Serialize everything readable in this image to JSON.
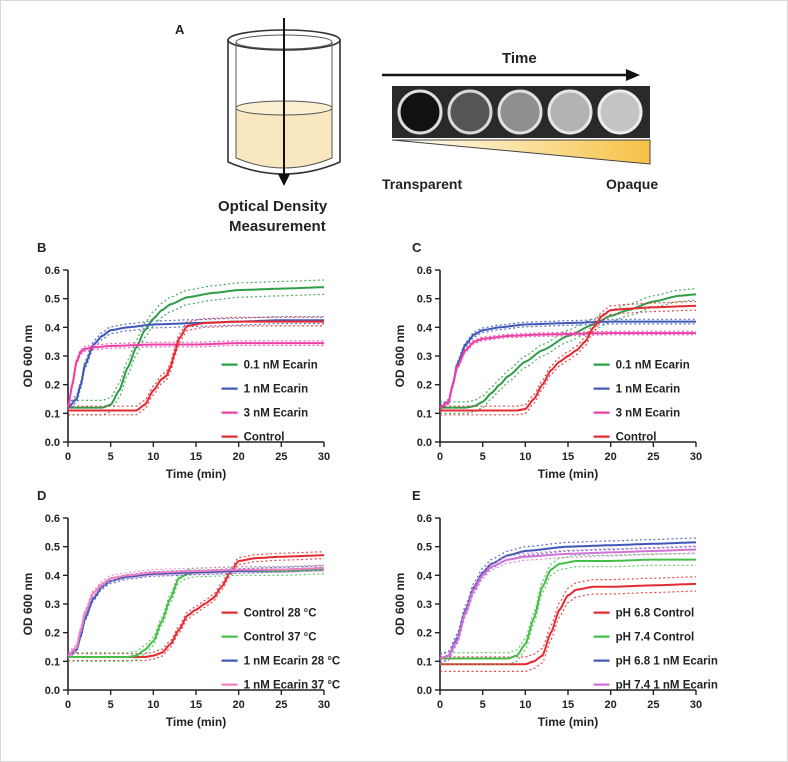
{
  "panel_a": {
    "letter": "A",
    "time_label": "Time",
    "transparent_label": "Transparent",
    "opaque_label": "Opaque",
    "od_label_line1": "Optical Density",
    "od_label_line2": "Measurement",
    "colors": {
      "liquid": "#f8e7bf",
      "gradient_end": "#f6c245"
    }
  },
  "chart_data": [
    {
      "panel": "B",
      "type": "line",
      "xlabel": "Time (min)",
      "ylabel": "OD 600 nm",
      "xlim": [
        0,
        30
      ],
      "ylim": [
        0,
        0.6
      ],
      "xticks": [
        0,
        5,
        10,
        15,
        20,
        25,
        30
      ],
      "yticks": [
        0.0,
        0.1,
        0.2,
        0.3,
        0.4,
        0.5,
        0.6
      ],
      "legend_position": "right",
      "series": [
        {
          "name": "0.1 nM Ecarin",
          "color": "#2e9e48",
          "x": [
            0,
            2,
            4,
            5,
            6,
            7,
            8,
            9,
            10,
            11,
            12,
            14,
            17,
            20,
            25,
            30
          ],
          "y": [
            0.12,
            0.12,
            0.12,
            0.13,
            0.18,
            0.26,
            0.33,
            0.39,
            0.43,
            0.46,
            0.48,
            0.505,
            0.52,
            0.53,
            0.535,
            0.54
          ],
          "band": 0.025
        },
        {
          "name": "1 nM Ecarin",
          "color": "#3f58b8",
          "x": [
            0,
            1,
            1.5,
            2,
            3,
            4,
            5,
            7,
            10,
            15,
            20,
            25,
            30
          ],
          "y": [
            0.12,
            0.15,
            0.2,
            0.27,
            0.34,
            0.37,
            0.39,
            0.4,
            0.41,
            0.415,
            0.42,
            0.425,
            0.425
          ],
          "band": 0.012
        },
        {
          "name": "3 nM Ecarin",
          "color": "#ee3fa7",
          "x": [
            0,
            0.5,
            1,
            1.5,
            2,
            3,
            5,
            10,
            15,
            20,
            25,
            30
          ],
          "y": [
            0.12,
            0.2,
            0.28,
            0.315,
            0.325,
            0.33,
            0.335,
            0.34,
            0.34,
            0.345,
            0.345,
            0.345
          ],
          "band": 0.008
        },
        {
          "name": "Control",
          "color": "#e52a32",
          "x": [
            0,
            5,
            8,
            9,
            10,
            11,
            11.5,
            12,
            12.5,
            13,
            14,
            16,
            20,
            25,
            30
          ],
          "y": [
            0.11,
            0.11,
            0.11,
            0.13,
            0.18,
            0.22,
            0.23,
            0.26,
            0.31,
            0.36,
            0.405,
            0.415,
            0.42,
            0.42,
            0.42
          ],
          "band": 0.015
        }
      ]
    },
    {
      "panel": "C",
      "type": "line",
      "xlabel": "Time (min)",
      "ylabel": "OD 600 nm",
      "xlim": [
        0,
        30
      ],
      "ylim": [
        0,
        0.6
      ],
      "xticks": [
        0,
        5,
        10,
        15,
        20,
        25,
        30
      ],
      "yticks": [
        0.0,
        0.1,
        0.2,
        0.3,
        0.4,
        0.5,
        0.6
      ],
      "legend_position": "right",
      "series": [
        {
          "name": "0.1 nM Ecarin",
          "color": "#2e9e48",
          "x": [
            0,
            3,
            4,
            5,
            6,
            7,
            8,
            10,
            12,
            15,
            18,
            20,
            22,
            25,
            28,
            30
          ],
          "y": [
            0.12,
            0.12,
            0.125,
            0.14,
            0.17,
            0.2,
            0.23,
            0.28,
            0.32,
            0.37,
            0.41,
            0.44,
            0.46,
            0.49,
            0.51,
            0.515
          ],
          "band": 0.02
        },
        {
          "name": "1 nM Ecarin",
          "color": "#3f58b8",
          "x": [
            0,
            1,
            1.5,
            2,
            3,
            4,
            5,
            7,
            10,
            15,
            20,
            25,
            30
          ],
          "y": [
            0.12,
            0.14,
            0.2,
            0.27,
            0.34,
            0.375,
            0.39,
            0.4,
            0.41,
            0.415,
            0.42,
            0.42,
            0.42
          ],
          "band": 0.008
        },
        {
          "name": "3 nM Ecarin",
          "color": "#ee3fa7",
          "x": [
            0,
            1,
            1.5,
            2,
            3,
            4,
            5,
            8,
            12,
            20,
            30
          ],
          "y": [
            0.12,
            0.14,
            0.2,
            0.26,
            0.32,
            0.35,
            0.36,
            0.37,
            0.375,
            0.38,
            0.38
          ],
          "band": 0.006
        },
        {
          "name": "Control",
          "color": "#e52a32",
          "x": [
            0,
            9,
            10,
            11,
            12,
            13,
            14,
            15,
            16,
            17,
            18,
            19,
            20,
            22,
            25,
            30
          ],
          "y": [
            0.11,
            0.11,
            0.115,
            0.15,
            0.2,
            0.25,
            0.28,
            0.3,
            0.32,
            0.35,
            0.4,
            0.44,
            0.46,
            0.465,
            0.47,
            0.475
          ],
          "band": 0.015
        }
      ]
    },
    {
      "panel": "D",
      "type": "line",
      "xlabel": "Time (min)",
      "ylabel": "OD 600 nm",
      "xlim": [
        0,
        30
      ],
      "ylim": [
        0,
        0.6
      ],
      "xticks": [
        0,
        5,
        10,
        15,
        20,
        25,
        30
      ],
      "yticks": [
        0.0,
        0.1,
        0.2,
        0.3,
        0.4,
        0.5,
        0.6
      ],
      "legend_position": "right",
      "series": [
        {
          "name": "Control 28 °C",
          "color": "#e52a32",
          "x": [
            0,
            9,
            10,
            11,
            12,
            13,
            14,
            15,
            16,
            17,
            18,
            19,
            20,
            22,
            25,
            30
          ],
          "y": [
            0.115,
            0.115,
            0.12,
            0.13,
            0.16,
            0.21,
            0.26,
            0.28,
            0.3,
            0.32,
            0.36,
            0.41,
            0.45,
            0.46,
            0.465,
            0.47
          ],
          "band": 0.012
        },
        {
          "name": "Control 37 °C",
          "color": "#46bf4a",
          "x": [
            0,
            7,
            8,
            9,
            10,
            11,
            12,
            13,
            14,
            15,
            20,
            25,
            30
          ],
          "y": [
            0.115,
            0.115,
            0.12,
            0.14,
            0.17,
            0.24,
            0.32,
            0.39,
            0.405,
            0.41,
            0.415,
            0.415,
            0.42
          ],
          "band": 0.015
        },
        {
          "name": "1 nM Ecarin 28 °C",
          "color": "#3f58b8",
          "x": [
            0,
            1,
            1.5,
            2,
            3,
            4,
            5,
            7,
            10,
            15,
            20,
            25,
            30
          ],
          "y": [
            0.12,
            0.14,
            0.19,
            0.25,
            0.32,
            0.36,
            0.38,
            0.395,
            0.405,
            0.41,
            0.415,
            0.42,
            0.425
          ],
          "band": 0.008
        },
        {
          "name": "1 nM Ecarin 37 °C",
          "color": "#f07fbf",
          "x": [
            0,
            1,
            1.5,
            2,
            3,
            4,
            5,
            7,
            10,
            15,
            20,
            25,
            30
          ],
          "y": [
            0.12,
            0.15,
            0.21,
            0.27,
            0.34,
            0.37,
            0.39,
            0.4,
            0.41,
            0.415,
            0.42,
            0.42,
            0.425
          ],
          "band": 0.01
        }
      ]
    },
    {
      "panel": "E",
      "type": "line",
      "xlabel": "Time (min)",
      "ylabel": "OD 600 nm",
      "xlim": [
        0,
        30
      ],
      "ylim": [
        0,
        0.6
      ],
      "xticks": [
        0,
        5,
        10,
        15,
        20,
        25,
        30
      ],
      "yticks": [
        0.0,
        0.1,
        0.2,
        0.3,
        0.4,
        0.5,
        0.6
      ],
      "legend_position": "right",
      "series": [
        {
          "name": "pH 6.8 Control",
          "color": "#e52a32",
          "x": [
            0,
            5,
            10,
            11,
            12,
            13,
            14,
            15,
            16,
            18,
            20,
            25,
            30
          ],
          "y": [
            0.09,
            0.09,
            0.09,
            0.1,
            0.12,
            0.2,
            0.28,
            0.33,
            0.35,
            0.36,
            0.36,
            0.365,
            0.37
          ],
          "band": 0.025
        },
        {
          "name": "pH 7.4 Control",
          "color": "#46bf4a",
          "x": [
            0,
            5,
            8,
            9,
            10,
            11,
            12,
            13,
            14,
            16,
            20,
            25,
            30
          ],
          "y": [
            0.11,
            0.11,
            0.11,
            0.12,
            0.16,
            0.25,
            0.36,
            0.42,
            0.44,
            0.45,
            0.45,
            0.455,
            0.455
          ],
          "band": 0.02
        },
        {
          "name": "pH 6.8 1 nM Ecarin",
          "color": "#3f58b8",
          "x": [
            0,
            1,
            2,
            3,
            4,
            5,
            6,
            8,
            10,
            15,
            20,
            25,
            30
          ],
          "y": [
            0.11,
            0.12,
            0.18,
            0.28,
            0.36,
            0.41,
            0.44,
            0.47,
            0.485,
            0.5,
            0.505,
            0.51,
            0.515
          ],
          "band": 0.015
        },
        {
          "name": "pH 7.4 1 nM Ecarin",
          "color": "#d271d8",
          "x": [
            0,
            1,
            2,
            3,
            4,
            5,
            6,
            8,
            10,
            15,
            20,
            25,
            30
          ],
          "y": [
            0.11,
            0.12,
            0.17,
            0.27,
            0.35,
            0.4,
            0.43,
            0.455,
            0.465,
            0.475,
            0.48,
            0.485,
            0.49
          ],
          "band": 0.012
        }
      ]
    }
  ]
}
